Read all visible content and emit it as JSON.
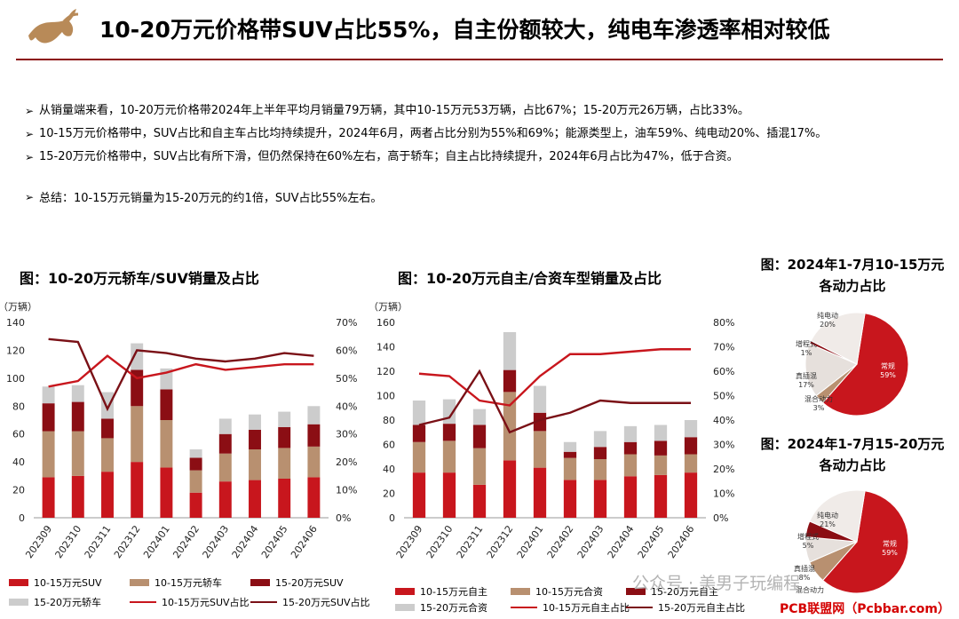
{
  "header": {
    "title": "10-20万元价格带SUV占比55%，自主份额较大，纯电车渗透率相对较低"
  },
  "bullets": [
    "从销量端来看，10-20万元价格带2024年上半年平均月销量79万辆，其中10-15万元53万辆，占比67%；15-20万元26万辆，占比33%。",
    "10-15万元价格带中，SUV占比和自主车占比均持续提升，2024年6月，两者占比分别为55%和69%；能源类型上，油车59%、纯电动20%、插混17%。",
    "15-20万元价格带中，SUV占比有所下滑，但仍然保持在60%左右，高于轿车；自主占比持续提升，2024年6月占比为47%，低于合资。"
  ],
  "summary": "总结：10-15万元销量为15-20万元的约1倍，SUV占比55%左右。",
  "bullet_arrow": "➢",
  "chart_data": [
    {
      "type": "bar",
      "title": "图：10-20万元轿车/SUV销量及占比",
      "unit": "（万辆）",
      "categories": [
        "202309",
        "202310",
        "202311",
        "202312",
        "202401",
        "202402",
        "202403",
        "202404",
        "202405",
        "202406"
      ],
      "ylim": [
        0,
        140
      ],
      "yticks": [
        "0",
        "20",
        "40",
        "60",
        "80",
        "100",
        "120",
        "140"
      ],
      "y2lim": [
        0,
        70
      ],
      "y2ticks": [
        "0%",
        "10%",
        "20%",
        "30%",
        "40%",
        "50%",
        "60%",
        "70%"
      ],
      "stacked_series": [
        {
          "name": "10-15万元SUV",
          "color": "#c8161d",
          "values": [
            29,
            30,
            33,
            40,
            36,
            18,
            26,
            27,
            28,
            29
          ]
        },
        {
          "name": "10-15万元轿车",
          "color": "#b89070",
          "values": [
            33,
            32,
            24,
            40,
            34,
            16,
            20,
            22,
            22,
            22
          ]
        },
        {
          "name": "15-20万元SUV",
          "color": "#8b0e14",
          "values": [
            20,
            21,
            14,
            26,
            22,
            9,
            14,
            14,
            15,
            16
          ]
        },
        {
          "name": "15-20万元轿车",
          "color": "#cccccc",
          "values": [
            12,
            12,
            19,
            19,
            15,
            6,
            11,
            11,
            11,
            13
          ]
        }
      ],
      "line_series": [
        {
          "name": "10-15万元SUV占比",
          "color": "#c8161d",
          "values": [
            47,
            49,
            58,
            50,
            52,
            55,
            53,
            54,
            55,
            55
          ]
        },
        {
          "name": "15-20万元SUV占比",
          "color": "#7a1016",
          "values": [
            64,
            63,
            39,
            60,
            59,
            57,
            56,
            57,
            59,
            58
          ]
        }
      ]
    },
    {
      "type": "bar",
      "title": "图：10-20万元自主/合资车型销量及占比",
      "unit": "（万辆）",
      "categories": [
        "202309",
        "202310",
        "202311",
        "202312",
        "202401",
        "202402",
        "202403",
        "202404",
        "202405",
        "202406"
      ],
      "ylim": [
        0,
        160
      ],
      "yticks": [
        "0",
        "20",
        "40",
        "60",
        "80",
        "100",
        "120",
        "140",
        "160"
      ],
      "y2lim": [
        0,
        80
      ],
      "y2ticks": [
        "0%",
        "10%",
        "20%",
        "30%",
        "40%",
        "50%",
        "60%",
        "70%",
        "80%"
      ],
      "stacked_series": [
        {
          "name": "10-15万元自主",
          "color": "#c8161d",
          "values": [
            37,
            37,
            27,
            47,
            41,
            31,
            31,
            34,
            35,
            37
          ]
        },
        {
          "name": "10-15万元合资",
          "color": "#b89070",
          "values": [
            25,
            26,
            30,
            56,
            30,
            18,
            17,
            18,
            16,
            15
          ]
        },
        {
          "name": "15-20万元自主",
          "color": "#8b0e14",
          "values": [
            14,
            14,
            19,
            18,
            15,
            5,
            10,
            10,
            12,
            14
          ]
        },
        {
          "name": "15-20万元合资",
          "color": "#cccccc",
          "values": [
            20,
            20,
            13,
            31,
            22,
            8,
            13,
            13,
            13,
            14
          ]
        }
      ],
      "line_series": [
        {
          "name": "10-15万元自主占比",
          "color": "#c8161d",
          "values": [
            59,
            58,
            48,
            46,
            58,
            67,
            67,
            68,
            69,
            69
          ]
        },
        {
          "name": "15-20万元自主占比",
          "color": "#7a1016",
          "values": [
            38,
            41,
            60,
            35,
            40,
            43,
            48,
            47,
            47,
            47
          ]
        }
      ]
    },
    {
      "type": "pie",
      "title_line1": "图：2024年1-7月10-15万元",
      "title_line2": "各动力占比",
      "slices": [
        {
          "label": "常规",
          "pct": "59%",
          "value": 59,
          "color": "#c8161d"
        },
        {
          "label": "混合动力",
          "pct": "3%",
          "value": 3,
          "color": "#b89070"
        },
        {
          "label": "真插混",
          "pct": "17%",
          "value": 17,
          "color": "#e6e0dc"
        },
        {
          "label": "增程式",
          "pct": "1%",
          "value": 1,
          "color": "#8b0e14"
        },
        {
          "label": "纯电动",
          "pct": "20%",
          "value": 20,
          "color": "#f0ebe8"
        }
      ]
    },
    {
      "type": "pie",
      "title_line1": "图：2024年1-7月15-20万元",
      "title_line2": "各动力占比",
      "slices": [
        {
          "label": "常规",
          "pct": "59%",
          "value": 59,
          "color": "#c8161d"
        },
        {
          "label": "混合动力",
          "pct": "",
          "value": 7,
          "color": "#b89070"
        },
        {
          "label": "真插混",
          "pct": "8%",
          "value": 8,
          "color": "#e6e0dc"
        },
        {
          "label": "增程式",
          "pct": "5%",
          "value": 5,
          "color": "#8b0e14"
        },
        {
          "label": "纯电动",
          "pct": "21%",
          "value": 21,
          "color": "#f0ebe8"
        }
      ]
    }
  ],
  "watermark": "公众号 · 美男子玩编程",
  "site_mark": "PCB联盟网（Pcbbar.com）"
}
